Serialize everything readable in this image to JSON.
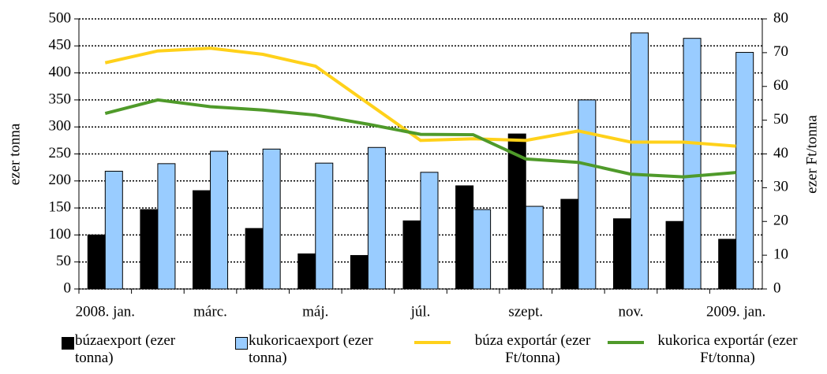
{
  "chart_data": {
    "type": "bar-line",
    "categories": [
      "2008. jan.",
      null,
      "márc.",
      null,
      "máj.",
      null,
      "júl.",
      null,
      "szept.",
      null,
      "nov.",
      null,
      "2009. jan."
    ],
    "ylabel": "ezer tonna",
    "y2label": "ezer Ft/tonna",
    "ylim": [
      0,
      500
    ],
    "yticks": [
      0,
      50,
      100,
      150,
      200,
      250,
      300,
      350,
      400,
      450,
      500
    ],
    "y2lim": [
      0,
      80
    ],
    "y2ticks": [
      0,
      10,
      20,
      30,
      40,
      50,
      60,
      70,
      80
    ],
    "grid": true,
    "series": [
      {
        "name": "búzaexport (ezer tonna)",
        "type": "bar",
        "color": "#000000",
        "values": [
          100,
          147,
          182,
          112,
          65,
          62,
          126,
          191,
          287,
          166,
          130,
          125,
          92
        ]
      },
      {
        "name": "kukoricaexport (ezer tonna)",
        "type": "bar",
        "color": "#99ccff",
        "values": [
          218,
          232,
          255,
          259,
          233,
          262,
          216,
          147,
          153,
          350,
          474,
          464,
          438
        ]
      },
      {
        "name": "búza exportár (ezer Ft/tonna)",
        "type": "line",
        "axis": "y2",
        "color": "#ffd11a",
        "values": [
          67,
          70.5,
          71.3,
          69.5,
          66,
          55,
          44,
          44.5,
          44,
          46.8,
          43.5,
          43.5,
          42.3
        ]
      },
      {
        "name": "kukorica exportár (ezer Ft/tonna)",
        "type": "line",
        "axis": "y2",
        "color": "#4f9a2a",
        "values": [
          52,
          56,
          54,
          53,
          51.5,
          48.8,
          45.8,
          45.7,
          38.5,
          37.5,
          34,
          33.2,
          34.5
        ]
      }
    ]
  }
}
